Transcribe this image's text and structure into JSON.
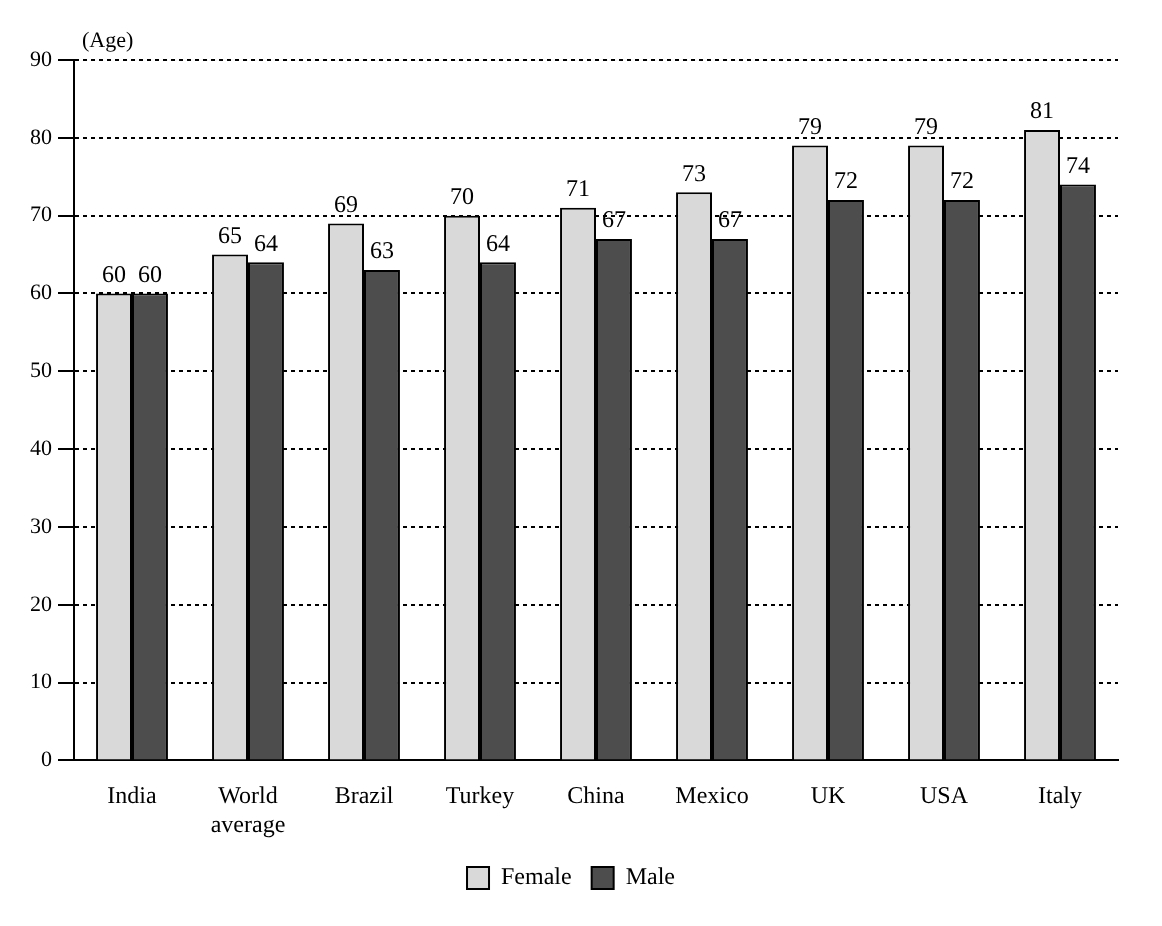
{
  "chart_data": {
    "type": "bar",
    "ylabel": "(Age)",
    "categories": [
      "India",
      "World average",
      "Brazil",
      "Turkey",
      "China",
      "Mexico",
      "UK",
      "USA",
      "Italy"
    ],
    "series": [
      {
        "name": "Female",
        "color": "#d9d9d9",
        "values": [
          60,
          65,
          69,
          70,
          71,
          73,
          79,
          79,
          81
        ]
      },
      {
        "name": "Male",
        "color": "#4d4d4d",
        "values": [
          60,
          64,
          63,
          64,
          67,
          67,
          72,
          72,
          74
        ]
      }
    ],
    "ylim": [
      0,
      90
    ],
    "yticks": [
      0,
      10,
      20,
      30,
      40,
      50,
      60,
      70,
      80,
      90
    ],
    "grid": "y",
    "legend": "bottom",
    "data_labels": true
  }
}
